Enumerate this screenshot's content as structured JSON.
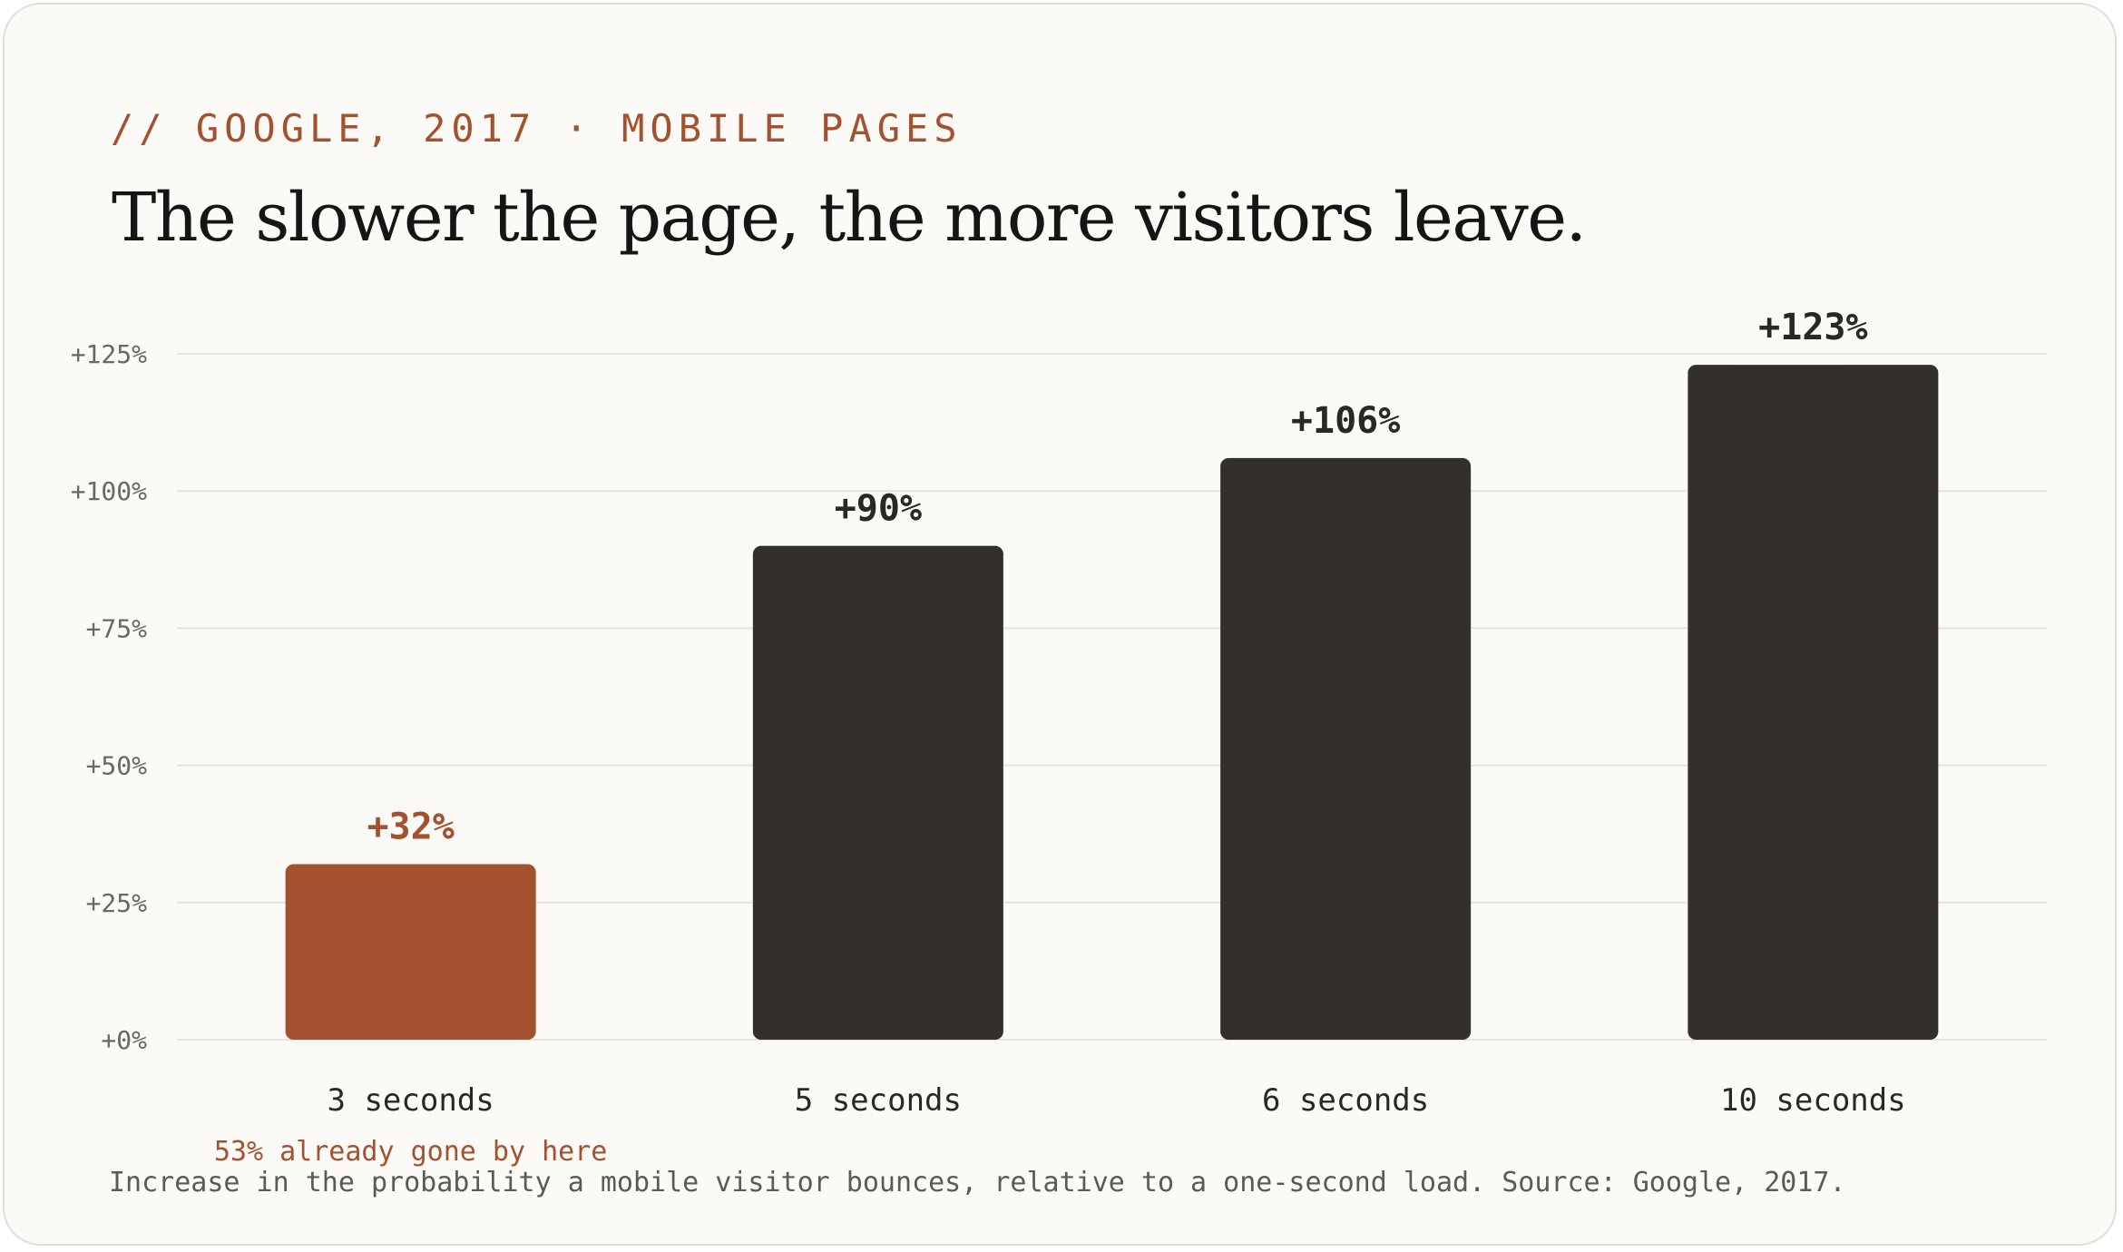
{
  "kicker": "// GOOGLE, 2017 · MOBILE PAGES",
  "title": "The slower the page, the more visitors leave.",
  "caption": "Increase in the probability a mobile visitor bounces, relative to a one-second load. Source: Google, 2017.",
  "colors": {
    "highlight": "#a3512e",
    "bar": "#33302c"
  },
  "chart_data": {
    "type": "bar",
    "categories": [
      "3 seconds",
      "5 seconds",
      "6 seconds",
      "10 seconds"
    ],
    "values": [
      32,
      90,
      106,
      123
    ],
    "value_labels": [
      "+32%",
      "+90%",
      "+106%",
      "+123%"
    ],
    "highlight_index": 0,
    "ylim": [
      0,
      125
    ],
    "yticks": [
      0,
      25,
      50,
      75,
      100,
      125
    ],
    "ytick_labels": [
      "+0%",
      "+25%",
      "+50%",
      "+75%",
      "+100%",
      "+125%"
    ],
    "grid": true,
    "legend": false,
    "xlabel": "",
    "ylabel": "",
    "annotations": [
      {
        "category_index": 0,
        "text": "53% already gone by here"
      }
    ]
  }
}
